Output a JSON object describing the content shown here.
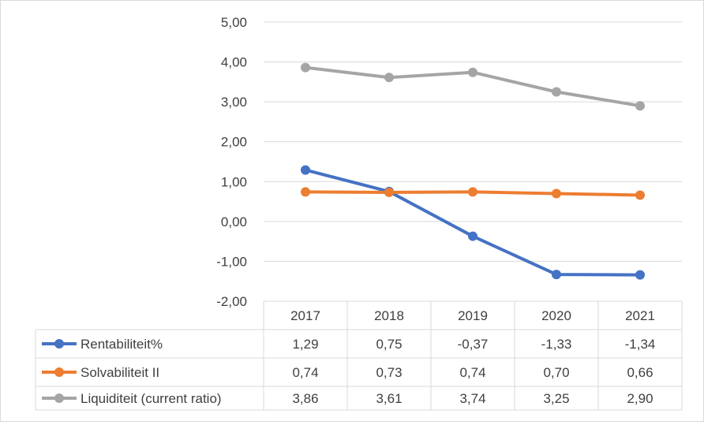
{
  "chart_data": {
    "type": "line",
    "title": "",
    "xlabel": "",
    "ylabel": "",
    "ylim": [
      -2,
      5
    ],
    "grid": true,
    "legend": "data-table",
    "y_ticks": [
      "5,00",
      "4,00",
      "3,00",
      "2,00",
      "1,00",
      "0,00",
      "-1,00",
      "-2,00"
    ],
    "y_tick_values": [
      5,
      4,
      3,
      2,
      1,
      0,
      -1,
      -2
    ],
    "categories": [
      "2017",
      "2018",
      "2019",
      "2020",
      "2021"
    ],
    "series": [
      {
        "name": "Rentabiliteit%",
        "color": "#4472c4",
        "values": [
          1.29,
          0.75,
          -0.37,
          -1.33,
          -1.34
        ],
        "labels": [
          "1,29",
          "0,75",
          "-0,37",
          "-1,33",
          "-1,34"
        ]
      },
      {
        "name": "Solvabiliteit II",
        "color": "#ed7d31",
        "values": [
          0.74,
          0.73,
          0.74,
          0.7,
          0.66
        ],
        "labels": [
          "0,74",
          "0,73",
          "0,74",
          "0,70",
          "0,66"
        ]
      },
      {
        "name": "Liquiditeit (current ratio)",
        "color": "#a5a5a5",
        "values": [
          3.86,
          3.61,
          3.74,
          3.25,
          2.9
        ],
        "labels": [
          "3,86",
          "3,61",
          "3,74",
          "3,25",
          "2,90"
        ]
      }
    ]
  }
}
